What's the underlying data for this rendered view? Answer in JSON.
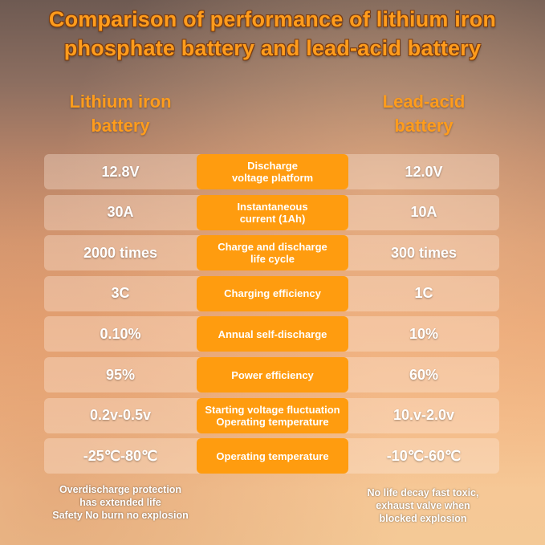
{
  "title": [
    "Comparison of performance of lithium iron",
    "phosphate battery and lead-acid battery"
  ],
  "columns": {
    "left": [
      "Lithium iron",
      "battery"
    ],
    "right": [
      "Lead-acid",
      "battery"
    ]
  },
  "rows": [
    {
      "left": "12.8V",
      "label": [
        "Discharge",
        "voltage platform"
      ],
      "right": "12.0V"
    },
    {
      "left": "30A",
      "label": [
        "Instantaneous",
        "current (1Ah)"
      ],
      "right": "10A"
    },
    {
      "left": "2000 times",
      "label": [
        "Charge and discharge",
        "life cycle"
      ],
      "right": "300 times"
    },
    {
      "left": "3C",
      "label": [
        "Charging efficiency",
        ""
      ],
      "right": "1C"
    },
    {
      "left": "0.10%",
      "label": [
        "Annual self-discharge",
        ""
      ],
      "right": "10%"
    },
    {
      "left": "95%",
      "label": [
        "Power efficiency",
        ""
      ],
      "right": "60%"
    },
    {
      "left": "0.2v-0.5v",
      "label": [
        "Starting voltage fluctuation",
        "Operating temperature"
      ],
      "right": "10.v-2.0v"
    },
    {
      "left": "-25℃-80℃",
      "label": [
        "Operating temperature",
        ""
      ],
      "right": "-10℃-60℃"
    }
  ],
  "notes": {
    "left": [
      "Overdischarge protection",
      "has extended life",
      "Safety No burn no explosion"
    ],
    "right": [
      "No life decay fast toxic,",
      "exhaust valve when",
      "blocked explosion"
    ]
  },
  "colors": {
    "accent": "#ff9c0f",
    "title": "#ff9c1c"
  }
}
